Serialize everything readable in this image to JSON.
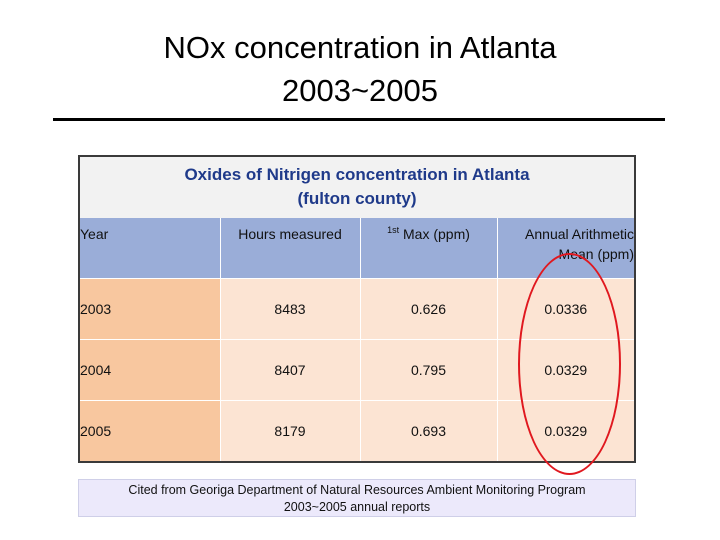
{
  "slide": {
    "title_lines": [
      "NOx concentration in Atlanta",
      "2003~2005"
    ]
  },
  "table": {
    "caption_lines": [
      "Oxides of Nitrigen concentration in Atlanta",
      "(fulton county)"
    ],
    "headers": {
      "year": "Year",
      "hours": "Hours measured",
      "max_sup": "1st",
      "max_text": " Max (ppm)",
      "mean_line1": "Annual Arithmetic",
      "mean_line2": "Mean (ppm)"
    },
    "rows": [
      {
        "year": "2003",
        "hours": "8483",
        "max": "0.626",
        "mean": "0.0336"
      },
      {
        "year": "2004",
        "hours": "8407",
        "max": "0.795",
        "mean": "0.0329"
      },
      {
        "year": "2005",
        "hours": "8179",
        "max": "0.693",
        "mean": "0.0329"
      }
    ]
  },
  "source": {
    "lines": [
      "Cited from Georiga Department of Natural Resources Ambient Monitoring Program",
      "2003~2005  annual reports"
    ]
  },
  "colors": {
    "caption_text": "#1f3a8a",
    "header_bg": "#9aadd8",
    "year_cell_bg": "#f8c79f",
    "data_cell_bg": "#fce4d3",
    "highlight": "#e0181f",
    "source_bg": "#ece9fb"
  }
}
